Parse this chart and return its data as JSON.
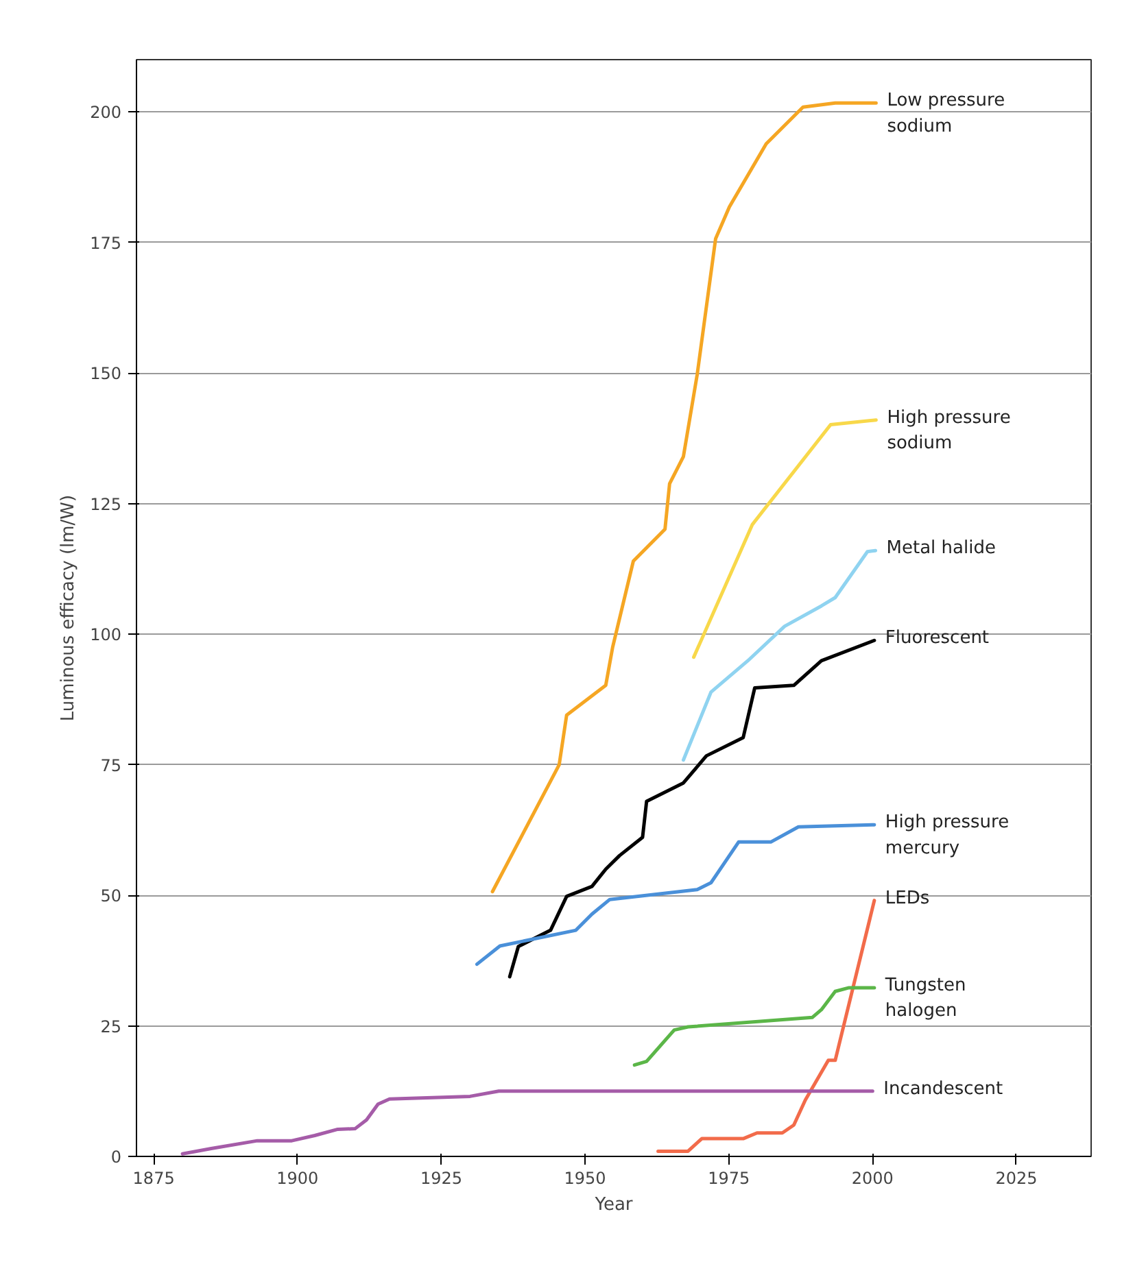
{
  "chart_data": {
    "type": "line",
    "xlabel": "Year",
    "ylabel": "Luminous efficacy (lm/W)",
    "xlim": [
      1872,
      2038
    ],
    "ylim": [
      0,
      210
    ],
    "xticks": [
      1875,
      1900,
      1925,
      1950,
      1975,
      2000,
      2025
    ],
    "yticks": [
      0,
      25,
      50,
      75,
      100,
      125,
      150,
      175,
      200
    ],
    "grid": "y",
    "series": [
      {
        "name": "Low pressure sodium",
        "color": "#f5a623",
        "x": [
          1933.9,
          1945.5,
          1946.8,
          1953.6,
          1954.8,
          1958.4,
          1963.9,
          1964.7,
          1967.1,
          1969.5,
          1972.7,
          1975.1,
          1981.5,
          1987.9,
          1993.5,
          2000.6
        ],
        "values": [
          50.7,
          75,
          84.5,
          90.2,
          97.5,
          114,
          120.1,
          128.8,
          134,
          149.7,
          175.7,
          181.8,
          193.9,
          200.9,
          201.7,
          201.7
        ]
      },
      {
        "name": "High pressure sodium",
        "color": "#f8d84a",
        "x": [
          1968.9,
          1979.1,
          1992.7,
          2000.6
        ],
        "values": [
          95.6,
          121,
          140.1,
          141
        ]
      },
      {
        "name": "Metal halide",
        "color": "#8fd3f0",
        "x": [
          1967.1,
          1971.9,
          1978.3,
          1984.7,
          1991.1,
          1993.5,
          1999.1,
          2000.5
        ],
        "values": [
          75.9,
          88.9,
          94.9,
          101.5,
          105.4,
          107,
          115.8,
          116
        ]
      },
      {
        "name": "Fluorescent",
        "color": "#000000",
        "x": [
          1936.9,
          1938.4,
          1944,
          1946.8,
          1951.2,
          1953.6,
          1956,
          1960,
          1960.7,
          1967.1,
          1971.1,
          1977.5,
          1979.5,
          1986.3,
          1991.1,
          2000.3
        ],
        "values": [
          34.4,
          40.2,
          43.3,
          49.8,
          51.7,
          55,
          57.6,
          61.1,
          68,
          71.5,
          76.7,
          80.2,
          89.7,
          90.2,
          94.9,
          98.8
        ]
      },
      {
        "name": "High pressure mercury",
        "color": "#4a90d9",
        "x": [
          1931.2,
          1935.2,
          1948.4,
          1951.2,
          1954.3,
          1969.5,
          1971.9,
          1976.7,
          1982.3,
          1987.1,
          2000.3
        ],
        "values": [
          36.8,
          40.3,
          43.3,
          46.4,
          49.2,
          51.1,
          52.4,
          60.2,
          60.2,
          63.1,
          63.5
        ]
      },
      {
        "name": "LEDs",
        "color": "#f26b4a",
        "x": [
          1962.7,
          1967.9,
          1970.3,
          1977.5,
          1979.9,
          1984.3,
          1986.3,
          1988.3,
          1992.3,
          1993.5,
          2000.3
        ],
        "values": [
          1,
          1,
          3.4,
          3.4,
          4.5,
          4.5,
          6,
          10.8,
          18.4,
          18.4,
          49
        ]
      },
      {
        "name": "Tungsten halogen",
        "color": "#5bb648",
        "x": [
          1958.6,
          1960.7,
          1965.5,
          1967.9,
          1989.5,
          1991.1,
          1993.5,
          1995.9,
          2000.3
        ],
        "values": [
          17.5,
          18.2,
          24.2,
          24.8,
          26.6,
          28.1,
          31.6,
          32.3,
          32.3
        ]
      },
      {
        "name": "Incandescent",
        "color": "#a55ca8",
        "x": [
          1880,
          1885,
          1893,
          1899,
          1903,
          1907,
          1910,
          1912,
          1914,
          1916,
          1930,
          1935,
          2000
        ],
        "values": [
          0.5,
          1.5,
          3,
          3,
          4,
          5.2,
          5.3,
          7,
          10,
          11,
          11.5,
          12.5,
          12.5
        ]
      }
    ]
  }
}
